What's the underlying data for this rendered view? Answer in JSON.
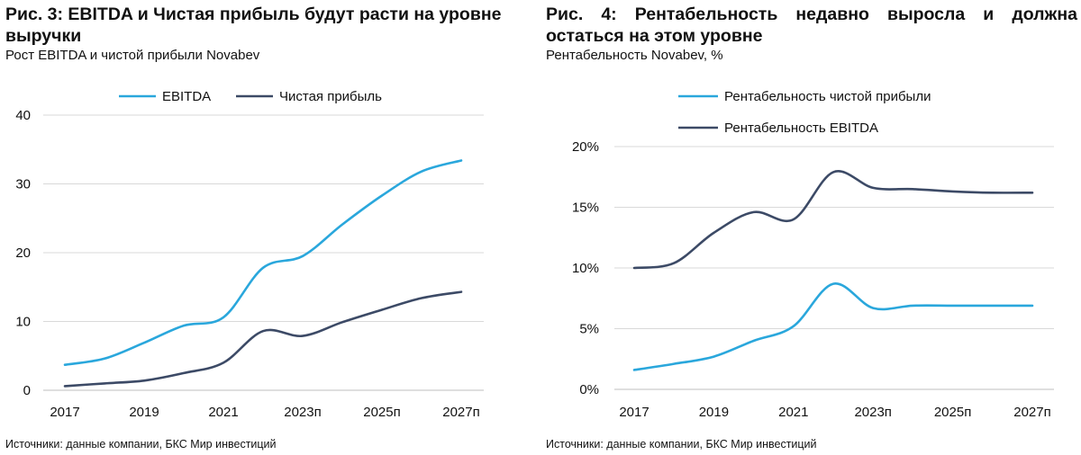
{
  "chart_data": [
    {
      "type": "line",
      "title": "Рис. 3: EBITDA и Чистая прибыль будут расти на уровне выручки",
      "subtitle": "Рост EBITDA и чистой прибыли Novabev",
      "source": "Источники: данные компании, БКС Мир инвестиций",
      "x": [
        "2017",
        "2018",
        "2019",
        "2020",
        "2021",
        "2022",
        "2023п",
        "2024п",
        "2025п",
        "2026п",
        "2027п"
      ],
      "x_tick_labels": [
        "2017",
        "2019",
        "2021",
        "2023п",
        "2025п",
        "2027п"
      ],
      "y_tick_labels": [
        "0",
        "10",
        "20",
        "30",
        "40"
      ],
      "ylim": [
        0,
        40
      ],
      "grid": true,
      "legend_position": "top",
      "series": [
        {
          "name": "EBITDA",
          "color": "#2aa7dc",
          "values": [
            3.7,
            4.6,
            6.9,
            9.4,
            10.6,
            17.8,
            19.5,
            24.1,
            28.3,
            31.8,
            33.4
          ]
        },
        {
          "name": "Чистая прибыль",
          "color": "#3c4a66",
          "values": [
            0.6,
            1.0,
            1.4,
            2.5,
            4.0,
            8.6,
            7.9,
            9.9,
            11.7,
            13.4,
            14.3
          ]
        }
      ]
    },
    {
      "type": "line",
      "title": "Рис. 4: Рентабельность недавно выросла и должна остаться на этом уровне",
      "subtitle": "Рентабельность Novabev, %",
      "source": "Источники: данные компании, БКС Мир инвестиций",
      "x": [
        "2017",
        "2018",
        "2019",
        "2020",
        "2021",
        "2022",
        "2023п",
        "2024п",
        "2025п",
        "2026п",
        "2027п"
      ],
      "x_tick_labels": [
        "2017",
        "2019",
        "2021",
        "2023п",
        "2025п",
        "2027п"
      ],
      "y_tick_labels": [
        "0%",
        "5%",
        "10%",
        "15%",
        "20%"
      ],
      "ylim": [
        0,
        20
      ],
      "grid": true,
      "legend_position": "top",
      "series": [
        {
          "name": "Рентабельность чистой прибыли",
          "color": "#2aa7dc",
          "values": [
            1.6,
            2.1,
            2.7,
            4.0,
            5.2,
            8.7,
            6.7,
            6.9,
            6.9,
            6.9,
            6.9
          ]
        },
        {
          "name": "Рентабельность EBITDA",
          "color": "#3c4a66",
          "values": [
            10.0,
            10.4,
            12.9,
            14.6,
            14.0,
            17.9,
            16.6,
            16.5,
            16.3,
            16.2,
            16.2
          ]
        }
      ]
    }
  ]
}
